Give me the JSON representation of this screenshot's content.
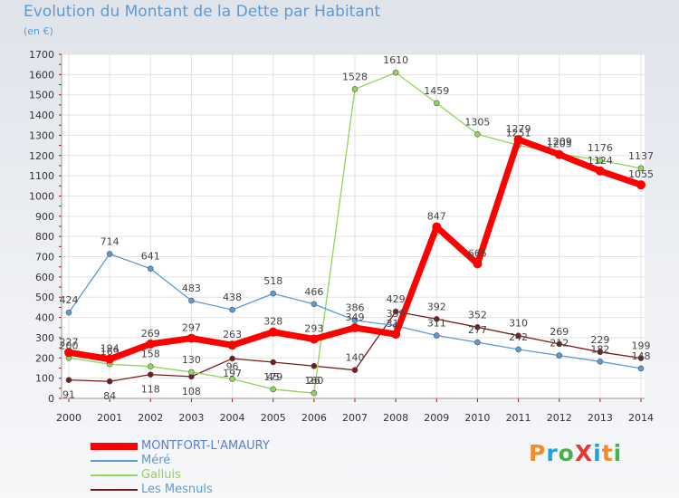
{
  "header": {
    "title": "Evolution du Montant de la Dette par Habitant",
    "subtitle": "(en €)"
  },
  "brand": {
    "text": "ProXiti",
    "colors": [
      "#f28c28",
      "#1aa3e0",
      "#4caf50",
      "#e53935",
      "#1aa3e0",
      "#f28c28",
      "#4caf50"
    ]
  },
  "chart_data": {
    "type": "line",
    "title": "Evolution du Montant de la Dette par Habitant",
    "subtitle": "(en €)",
    "x": [
      "2000",
      "2001",
      "2002",
      "2003",
      "2004",
      "2005",
      "2006",
      "2007",
      "2008",
      "2009",
      "2010",
      "2011",
      "2012",
      "2013",
      "2014"
    ],
    "ylim": [
      0,
      1700
    ],
    "yticks": [
      "0",
      "100",
      "200",
      "300",
      "400",
      "500",
      "600",
      "700",
      "800",
      "900",
      "1000",
      "1100",
      "1200",
      "1300",
      "1400",
      "1500",
      "1600",
      "1700"
    ],
    "legend_position": "bottom-left",
    "series": [
      {
        "name": "MONTFORT-L'AMAURY",
        "color": "#ff0000",
        "width": 7,
        "marker": 5,
        "values": [
          227,
          194,
          269,
          297,
          263,
          328,
          293,
          349,
          317,
          847,
          665,
          1279,
          1205,
          1124,
          1055
        ],
        "labels": [
          "227",
          "194",
          "269",
          "297",
          "263",
          "328",
          "293",
          "349",
          "317",
          "847",
          "665",
          "1279",
          "1205",
          "1124",
          "1055"
        ]
      },
      {
        "name": "Méré",
        "color": "#5b9bd5",
        "width": 1.3,
        "marker": 3,
        "values": [
          424,
          714,
          641,
          483,
          438,
          518,
          466,
          386,
          359,
          311,
          277,
          242,
          212,
          182,
          148
        ],
        "labels": [
          "424",
          "714",
          "641",
          "483",
          "438",
          "518",
          "466",
          "386",
          "359",
          "311",
          "277",
          "242",
          "212",
          "182",
          "148"
        ]
      },
      {
        "name": "Galluis",
        "color": "#8fd65a",
        "width": 1.3,
        "marker": 3,
        "values": [
          200,
          169,
          158,
          130,
          96,
          45,
          26,
          1528,
          1610,
          1459,
          1305,
          1251,
          1209,
          1176,
          1137
        ],
        "labels": [
          "200",
          "169",
          "158",
          "130",
          "96",
          "45",
          "26",
          "1528",
          "1610",
          "1459",
          "1305",
          "1251",
          "1209",
          "1176",
          "1137"
        ]
      },
      {
        "name": "Les Mesnuls",
        "color": "#7a1a1a",
        "width": 1.3,
        "marker": 3,
        "values": [
          91,
          84,
          118,
          108,
          197,
          179,
          160,
          140,
          429,
          392,
          352,
          310,
          269,
          229,
          199
        ],
        "labels": [
          "91",
          "84",
          "118",
          "108",
          "197",
          "179",
          "160",
          "140",
          "429",
          "392",
          "352",
          "310",
          "269",
          "229",
          "199"
        ]
      }
    ]
  }
}
